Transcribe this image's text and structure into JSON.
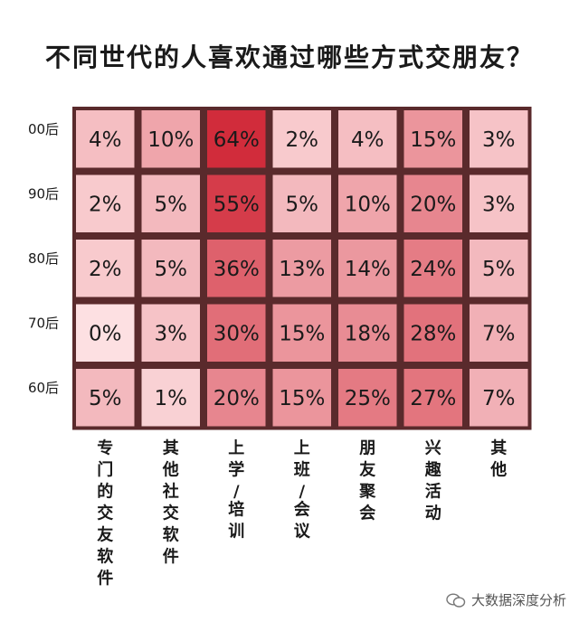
{
  "title": "不同世代的人喜欢通过哪些方式交朋友？",
  "watermark": {
    "text": "大数据深度分析",
    "icon": "wechat-icon"
  },
  "chart_data": {
    "type": "heatmap",
    "title": "不同世代的人喜欢通过哪些方式交朋友？",
    "rows": [
      "00后",
      "90后",
      "80后",
      "70后",
      "60后"
    ],
    "columns": [
      "专门的交友软件",
      "其他社交软件",
      "上学/培训",
      "上班/会议",
      "朋友聚会",
      "兴趣活动",
      "其他"
    ],
    "values": [
      [
        4,
        10,
        64,
        2,
        4,
        15,
        3
      ],
      [
        2,
        5,
        55,
        5,
        10,
        20,
        3
      ],
      [
        2,
        5,
        36,
        13,
        14,
        24,
        5
      ],
      [
        0,
        3,
        30,
        15,
        18,
        28,
        7
      ],
      [
        5,
        1,
        20,
        15,
        25,
        27,
        7
      ]
    ],
    "value_suffix": "%",
    "colors": {
      "low": "#fde0e2",
      "high": "#d12c3b",
      "grid": "#5a2a2c"
    }
  }
}
